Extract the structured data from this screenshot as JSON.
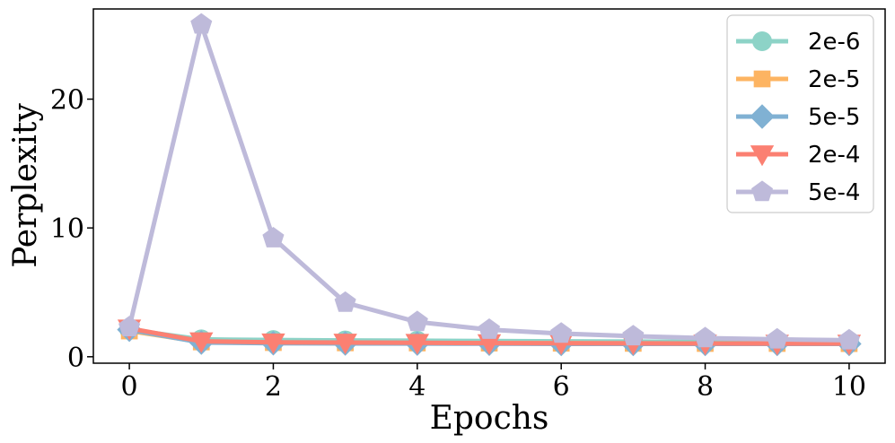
{
  "chart_data": {
    "type": "line",
    "xlabel": "Epochs",
    "ylabel": "Perplexity",
    "xlim": [
      -0.5,
      10.5
    ],
    "ylim": [
      -0.5,
      27.0
    ],
    "x_ticks": [
      0,
      2,
      4,
      6,
      8,
      10
    ],
    "y_ticks": [
      0,
      10,
      20
    ],
    "x_tick_labels": [
      "0",
      "2",
      "4",
      "6",
      "8",
      "10"
    ],
    "y_tick_labels": [
      "0",
      "10",
      "20"
    ],
    "grid": false,
    "legend_position": "top-right",
    "x": [
      0,
      1,
      2,
      3,
      4,
      5,
      6,
      7,
      8,
      9,
      10
    ],
    "series": [
      {
        "name": "2e-6",
        "color": "#8dd3c7",
        "marker": "circle",
        "values": [
          2.1,
          1.35,
          1.3,
          1.27,
          1.25,
          1.22,
          1.2,
          1.18,
          1.16,
          1.15,
          1.14
        ]
      },
      {
        "name": "2e-5",
        "color": "#fdb462",
        "marker": "square",
        "values": [
          2.0,
          1.15,
          1.1,
          1.08,
          1.07,
          1.06,
          1.05,
          1.04,
          1.03,
          1.03,
          1.02
        ]
      },
      {
        "name": "5e-5",
        "color": "#80b1d3",
        "marker": "diamond",
        "values": [
          2.1,
          1.1,
          1.05,
          1.03,
          1.02,
          1.01,
          1.0,
          1.0,
          1.0,
          1.0,
          1.0
        ]
      },
      {
        "name": "2e-4",
        "color": "#fb8072",
        "marker": "triangle-down",
        "values": [
          2.2,
          1.2,
          1.12,
          1.1,
          1.08,
          1.06,
          1.05,
          1.04,
          1.03,
          1.02,
          1.02
        ]
      },
      {
        "name": "5e-4",
        "color": "#bebada",
        "marker": "pentagon",
        "values": [
          2.3,
          25.8,
          9.2,
          4.2,
          2.7,
          2.1,
          1.8,
          1.6,
          1.45,
          1.35,
          1.28
        ]
      }
    ]
  }
}
